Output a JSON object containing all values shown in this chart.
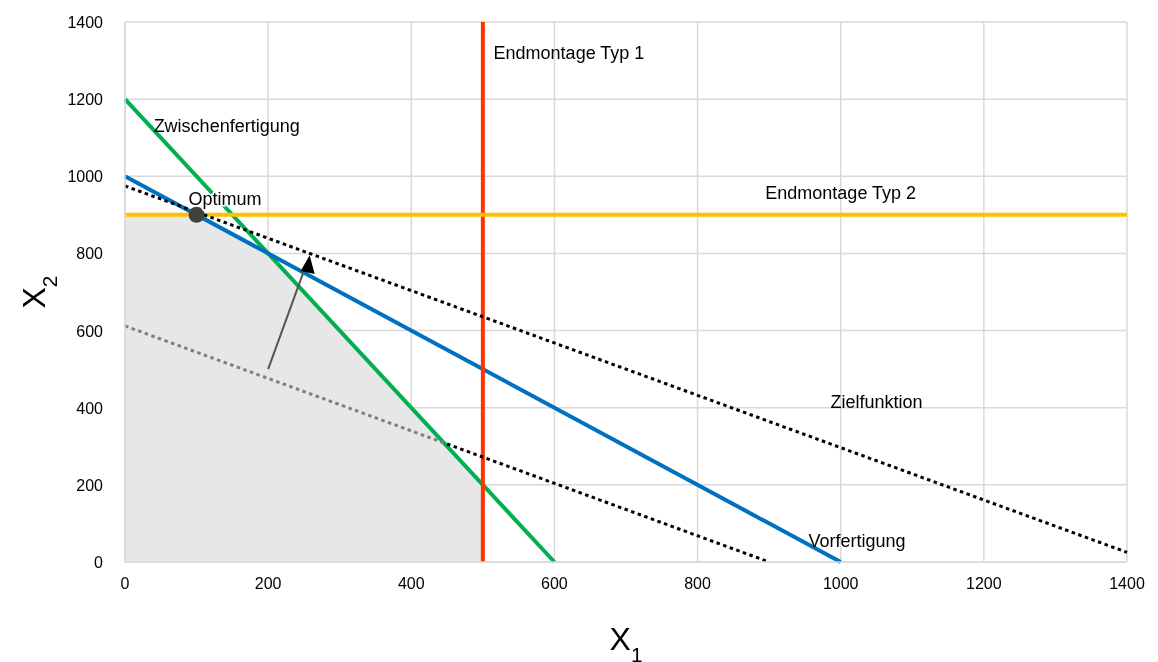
{
  "chart_data": {
    "type": "line",
    "xlabel": "X$_{1}$",
    "ylabel": "X$_{2}$",
    "xlim": [
      0,
      1400
    ],
    "ylim": [
      0,
      1400
    ],
    "xticks": [
      0,
      200,
      400,
      600,
      800,
      1000,
      1200,
      1400
    ],
    "yticks": [
      0,
      200,
      400,
      600,
      800,
      1000,
      1200,
      1400
    ],
    "grid": true,
    "series": [
      {
        "type": "area",
        "color": "#e7e7e7",
        "x": [
          0,
          100,
          200,
          500,
          500
        ],
        "values": [
          900,
          900,
          800,
          200,
          0
        ]
      },
      {
        "name": "Zwischenfertigung",
        "color": "#00b050",
        "x": [
          0,
          600
        ],
        "values": [
          1200,
          0
        ]
      },
      {
        "name": "Vorfertigung",
        "color": "#0070c0",
        "x": [
          0,
          1000
        ],
        "values": [
          1000,
          0
        ]
      },
      {
        "name": "Endmontage Typ 1",
        "color": "#ff3300",
        "x": [
          500,
          500
        ],
        "values": [
          0,
          1400
        ]
      },
      {
        "name": "Endmontage Typ 2",
        "color": "#ffc000",
        "x": [
          0,
          1400
        ],
        "values": [
          900,
          900
        ]
      },
      {
        "name": "Zielfunktion",
        "color": "#000000",
        "line_style": "dotted",
        "x": [
          0,
          1400
        ],
        "values": [
          975,
          25
        ]
      },
      {
        "color": "#7f7f7f",
        "line_style": "dotted",
        "x": [
          0,
          450
        ],
        "values": [
          612,
          306
        ]
      },
      {
        "color": "#000000",
        "line_style": "dotted",
        "x": [
          450,
          900
        ],
        "values": [
          306,
          0
        ]
      },
      {
        "type": "scatter",
        "marker": "circle",
        "color": "#404040",
        "x": [
          100
        ],
        "values": [
          900
        ]
      }
    ],
    "annotations": [
      {
        "text": "Optimum",
        "x": 100,
        "y": 900
      }
    ]
  }
}
